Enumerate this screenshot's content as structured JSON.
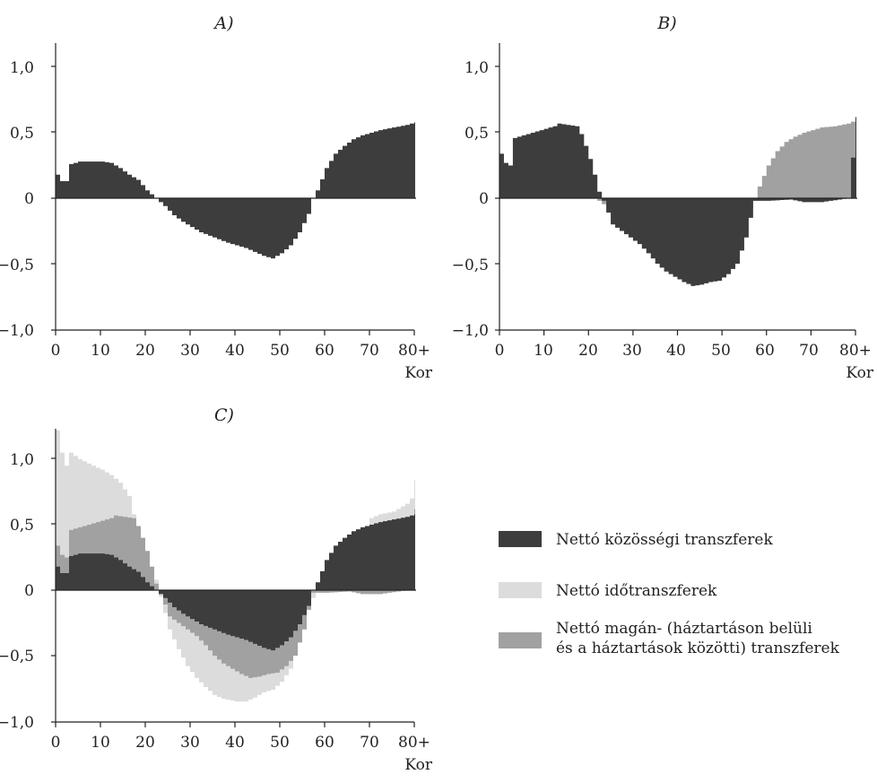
{
  "colors": {
    "public": "#3d3d3d",
    "time": "#dcdcdc",
    "private": "#a1a1a1",
    "axis": "#222222"
  },
  "legend": {
    "items": [
      {
        "label": "Nettó közösségi transzferek",
        "key": "public"
      },
      {
        "label": "Nettó időtranszferek",
        "key": "time"
      },
      {
        "label": "Nettó magán- (háztartáson belüli",
        "label2": "és a háztartások közötti) transzferek",
        "key": "private"
      }
    ]
  },
  "chart_data": [
    {
      "type": "area",
      "title": "A)",
      "xlabel": "Kor",
      "x_tick_labels": [
        "0",
        "10",
        "20",
        "30",
        "40",
        "50",
        "60",
        "70",
        "80+"
      ],
      "y_tick_labels": [
        "1,0",
        "0,5",
        "0",
        "−0,5",
        "−1,0"
      ],
      "ylim": [
        -1.0,
        1.2
      ],
      "xlim": [
        0,
        80
      ],
      "series": [
        {
          "key": "public",
          "values": [
            [
              0,
              0.18
            ],
            [
              1,
              0.13
            ],
            [
              2,
              0.13
            ],
            [
              3,
              0.26
            ],
            [
              5,
              0.28
            ],
            [
              10,
              0.28
            ],
            [
              12,
              0.27
            ],
            [
              14,
              0.23
            ],
            [
              16,
              0.18
            ],
            [
              18,
              0.14
            ],
            [
              20,
              0.06
            ],
            [
              22,
              0.0
            ],
            [
              24,
              -0.06
            ],
            [
              26,
              -0.13
            ],
            [
              28,
              -0.18
            ],
            [
              30,
              -0.22
            ],
            [
              32,
              -0.26
            ],
            [
              35,
              -0.3
            ],
            [
              38,
              -0.34
            ],
            [
              40,
              -0.36
            ],
            [
              42,
              -0.38
            ],
            [
              44,
              -0.41
            ],
            [
              46,
              -0.44
            ],
            [
              48,
              -0.46
            ],
            [
              50,
              -0.42
            ],
            [
              52,
              -0.36
            ],
            [
              54,
              -0.26
            ],
            [
              56,
              -0.12
            ],
            [
              57,
              0.0
            ],
            [
              58,
              0.06
            ],
            [
              60,
              0.23
            ],
            [
              62,
              0.34
            ],
            [
              64,
              0.4
            ],
            [
              66,
              0.45
            ],
            [
              68,
              0.48
            ],
            [
              70,
              0.5
            ],
            [
              72,
              0.52
            ],
            [
              75,
              0.54
            ],
            [
              78,
              0.56
            ],
            [
              80,
              0.58
            ]
          ]
        }
      ]
    },
    {
      "type": "area",
      "title": "B)",
      "xlabel": "Kor",
      "x_tick_labels": [
        "0",
        "10",
        "20",
        "30",
        "40",
        "50",
        "60",
        "70",
        "80+"
      ],
      "y_tick_labels": [
        "1,0",
        "0,5",
        "0",
        "−0,5",
        "−1,0"
      ],
      "ylim": [
        -1.0,
        1.2
      ],
      "xlim": [
        0,
        80
      ],
      "series": [
        {
          "key": "private",
          "values": [
            [
              0,
              0.2
            ],
            [
              1,
              0.14
            ],
            [
              2,
              0.13
            ],
            [
              3,
              0.25
            ],
            [
              5,
              0.28
            ],
            [
              10,
              0.28
            ],
            [
              12,
              0.27
            ],
            [
              14,
              0.23
            ],
            [
              16,
              0.18
            ],
            [
              18,
              0.14
            ],
            [
              20,
              0.06
            ],
            [
              22,
              -0.02
            ],
            [
              24,
              -0.07
            ],
            [
              26,
              -0.13
            ],
            [
              28,
              -0.17
            ],
            [
              30,
              -0.21
            ],
            [
              32,
              -0.25
            ],
            [
              35,
              -0.29
            ],
            [
              38,
              -0.33
            ],
            [
              40,
              -0.36
            ],
            [
              42,
              -0.39
            ],
            [
              44,
              -0.42
            ],
            [
              46,
              -0.45
            ],
            [
              48,
              -0.46
            ],
            [
              50,
              -0.42
            ],
            [
              52,
              -0.35
            ],
            [
              54,
              -0.22
            ],
            [
              56,
              -0.08
            ],
            [
              57,
              0.0
            ],
            [
              58,
              0.09
            ],
            [
              60,
              0.25
            ],
            [
              62,
              0.36
            ],
            [
              64,
              0.43
            ],
            [
              66,
              0.47
            ],
            [
              68,
              0.5
            ],
            [
              70,
              0.52
            ],
            [
              72,
              0.54
            ],
            [
              75,
              0.55
            ],
            [
              78,
              0.57
            ],
            [
              80,
              0.6
            ]
          ]
        },
        {
          "key": "public",
          "values": [
            [
              0,
              0.34
            ],
            [
              1,
              0.27
            ],
            [
              2,
              0.25
            ],
            [
              3,
              0.46
            ],
            [
              5,
              0.48
            ],
            [
              8,
              0.51
            ],
            [
              10,
              0.53
            ],
            [
              12,
              0.55
            ],
            [
              13,
              0.57
            ],
            [
              15,
              0.56
            ],
            [
              17,
              0.55
            ],
            [
              18,
              0.49
            ],
            [
              19,
              0.4
            ],
            [
              20,
              0.3
            ],
            [
              21,
              0.18
            ],
            [
              22,
              0.05
            ],
            [
              23,
              -0.02
            ],
            [
              25,
              -0.2
            ],
            [
              27,
              -0.25
            ],
            [
              29,
              -0.3
            ],
            [
              31,
              -0.35
            ],
            [
              33,
              -0.42
            ],
            [
              35,
              -0.5
            ],
            [
              37,
              -0.56
            ],
            [
              39,
              -0.6
            ],
            [
              41,
              -0.64
            ],
            [
              43,
              -0.67
            ],
            [
              45,
              -0.66
            ],
            [
              47,
              -0.64
            ],
            [
              49,
              -0.63
            ],
            [
              51,
              -0.58
            ],
            [
              53,
              -0.5
            ],
            [
              55,
              -0.3
            ],
            [
              56,
              -0.15
            ],
            [
              57,
              -0.02
            ],
            [
              60,
              -0.02
            ],
            [
              65,
              -0.01
            ],
            [
              68,
              -0.03
            ],
            [
              72,
              -0.03
            ],
            [
              76,
              -0.01
            ],
            [
              78,
              0.0
            ],
            [
              80,
              0.62
            ]
          ]
        }
      ]
    },
    {
      "type": "area",
      "title": "C)",
      "xlabel": "Kor",
      "x_tick_labels": [
        "0",
        "10",
        "20",
        "30",
        "40",
        "50",
        "60",
        "70",
        "80+"
      ],
      "y_tick_labels": [
        "1,0",
        "0,5",
        "0",
        "−0,5",
        "−1,0"
      ],
      "ylim": [
        -1.0,
        1.2
      ],
      "xlim": [
        0,
        80
      ],
      "series": [
        {
          "key": "time",
          "values": [
            [
              0,
              1.22
            ],
            [
              1,
              1.05
            ],
            [
              2,
              0.95
            ],
            [
              3,
              1.05
            ],
            [
              5,
              1.0
            ],
            [
              8,
              0.95
            ],
            [
              10,
              0.92
            ],
            [
              12,
              0.88
            ],
            [
              14,
              0.82
            ],
            [
              16,
              0.72
            ],
            [
              17,
              0.58
            ],
            [
              18,
              0.45
            ],
            [
              20,
              0.28
            ],
            [
              22,
              0.08
            ],
            [
              23,
              -0.05
            ],
            [
              25,
              -0.3
            ],
            [
              27,
              -0.45
            ],
            [
              29,
              -0.58
            ],
            [
              31,
              -0.67
            ],
            [
              33,
              -0.74
            ],
            [
              35,
              -0.8
            ],
            [
              37,
              -0.83
            ],
            [
              40,
              -0.85
            ],
            [
              42,
              -0.85
            ],
            [
              44,
              -0.82
            ],
            [
              46,
              -0.78
            ],
            [
              48,
              -0.76
            ],
            [
              50,
              -0.7
            ],
            [
              52,
              -0.6
            ],
            [
              54,
              -0.4
            ],
            [
              56,
              -0.12
            ],
            [
              58,
              0.0
            ],
            [
              60,
              0.0
            ],
            [
              62,
              0.0
            ],
            [
              68,
              0.0
            ],
            [
              70,
              0.55
            ],
            [
              72,
              0.58
            ],
            [
              75,
              0.6
            ],
            [
              78,
              0.66
            ],
            [
              79,
              0.7
            ],
            [
              80,
              0.84
            ]
          ]
        },
        {
          "key": "private",
          "values": [
            [
              0,
              0.34
            ],
            [
              1,
              0.27
            ],
            [
              2,
              0.25
            ],
            [
              3,
              0.46
            ],
            [
              5,
              0.48
            ],
            [
              8,
              0.51
            ],
            [
              10,
              0.53
            ],
            [
              12,
              0.55
            ],
            [
              13,
              0.57
            ],
            [
              15,
              0.56
            ],
            [
              17,
              0.55
            ],
            [
              18,
              0.49
            ],
            [
              19,
              0.4
            ],
            [
              20,
              0.3
            ],
            [
              21,
              0.18
            ],
            [
              22,
              0.05
            ],
            [
              23,
              -0.02
            ],
            [
              25,
              -0.2
            ],
            [
              27,
              -0.25
            ],
            [
              29,
              -0.3
            ],
            [
              31,
              -0.35
            ],
            [
              33,
              -0.42
            ],
            [
              35,
              -0.5
            ],
            [
              37,
              -0.56
            ],
            [
              39,
              -0.6
            ],
            [
              41,
              -0.64
            ],
            [
              43,
              -0.67
            ],
            [
              45,
              -0.66
            ],
            [
              47,
              -0.64
            ],
            [
              49,
              -0.63
            ],
            [
              51,
              -0.58
            ],
            [
              53,
              -0.5
            ],
            [
              55,
              -0.3
            ],
            [
              56,
              -0.15
            ],
            [
              57,
              -0.02
            ],
            [
              60,
              -0.02
            ],
            [
              65,
              -0.01
            ],
            [
              68,
              -0.03
            ],
            [
              72,
              -0.03
            ],
            [
              76,
              -0.01
            ],
            [
              78,
              0.0
            ],
            [
              80,
              0.62
            ]
          ]
        },
        {
          "key": "public",
          "values": [
            [
              0,
              0.18
            ],
            [
              1,
              0.13
            ],
            [
              2,
              0.13
            ],
            [
              3,
              0.26
            ],
            [
              5,
              0.28
            ],
            [
              10,
              0.28
            ],
            [
              12,
              0.27
            ],
            [
              14,
              0.23
            ],
            [
              16,
              0.18
            ],
            [
              18,
              0.14
            ],
            [
              20,
              0.06
            ],
            [
              22,
              0.0
            ],
            [
              24,
              -0.06
            ],
            [
              26,
              -0.13
            ],
            [
              28,
              -0.18
            ],
            [
              30,
              -0.22
            ],
            [
              32,
              -0.26
            ],
            [
              35,
              -0.3
            ],
            [
              38,
              -0.34
            ],
            [
              40,
              -0.36
            ],
            [
              42,
              -0.38
            ],
            [
              44,
              -0.41
            ],
            [
              46,
              -0.44
            ],
            [
              48,
              -0.46
            ],
            [
              50,
              -0.42
            ],
            [
              52,
              -0.36
            ],
            [
              54,
              -0.26
            ],
            [
              56,
              -0.12
            ],
            [
              57,
              0.0
            ],
            [
              58,
              0.06
            ],
            [
              60,
              0.23
            ],
            [
              62,
              0.34
            ],
            [
              64,
              0.4
            ],
            [
              66,
              0.45
            ],
            [
              68,
              0.48
            ],
            [
              70,
              0.5
            ],
            [
              72,
              0.52
            ],
            [
              75,
              0.54
            ],
            [
              78,
              0.56
            ],
            [
              80,
              0.58
            ]
          ]
        }
      ]
    }
  ]
}
